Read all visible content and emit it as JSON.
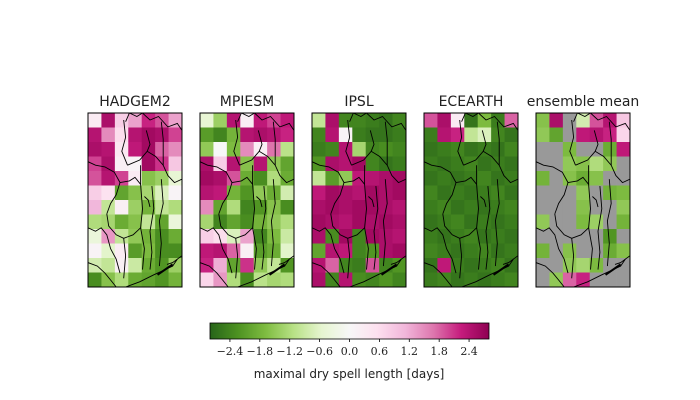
{
  "chart_data": {
    "type": "heatmap",
    "colormap": "PiYG_r",
    "vmin": -2.8,
    "vmax": 2.8,
    "missing_color": "#999999",
    "colorbar": {
      "label": "maximal dry spell length [days]",
      "ticks": [
        "−2.4",
        "−1.8",
        "−1.2",
        "−0.6",
        "0.0",
        "0.6",
        "1.2",
        "1.8",
        "2.4"
      ],
      "tick_values": [
        -2.4,
        -1.8,
        -1.2,
        -0.6,
        0.0,
        0.6,
        1.2,
        1.8,
        2.4
      ]
    },
    "grid_rows": 12,
    "grid_cols": 7,
    "panels": [
      {
        "title": "HADGEM2",
        "values": [
          [
            0.3,
            2.5,
            0.8,
            1.3,
            2.2,
            1.9,
            1.3
          ],
          [
            2.4,
            1.5,
            0.6,
            2.4,
            2.6,
            2.5,
            2.0
          ],
          [
            2.5,
            2.4,
            0.4,
            2.3,
            2.6,
            1.8,
            1.5
          ],
          [
            2.0,
            2.5,
            0.2,
            0.1,
            2.6,
            2.1,
            0.9
          ],
          [
            1.9,
            2.4,
            2.0,
            0.3,
            -1.6,
            -1.4,
            -0.5
          ],
          [
            0.8,
            0.5,
            -2.0,
            -1.6,
            -1.3,
            -0.7,
            0.1
          ],
          [
            1.1,
            -1.0,
            0.2,
            -1.4,
            -1.8,
            -1.0,
            -1.2
          ],
          [
            -1.2,
            -1.3,
            -1.9,
            -1.6,
            -1.0,
            -2.0,
            -0.4
          ],
          [
            -0.4,
            1.4,
            -1.0,
            -1.5,
            -1.8,
            -2.3,
            -1.9
          ],
          [
            0.1,
            -0.6,
            0.3,
            -2.1,
            -1.7,
            -2.3,
            -2.3
          ],
          [
            -0.8,
            -1.0,
            0.2,
            -0.9,
            -1.9,
            -2.2,
            -1.4
          ],
          [
            -2.3,
            -1.6,
            -1.2,
            -1.9,
            -2.0,
            -2.2,
            -1.8
          ]
        ]
      },
      {
        "title": "MPIESM",
        "values": [
          [
            -0.5,
            -1.4,
            2.4,
            0.2,
            2.3,
            2.0,
            2.3
          ],
          [
            -2.1,
            -2.4,
            -1.8,
            2.4,
            2.5,
            2.4,
            2.2
          ],
          [
            -1.5,
            0.0,
            -1.7,
            1.5,
            0.2,
            1.7,
            -1.1
          ],
          [
            2.5,
            0.8,
            2.4,
            -1.6,
            2.4,
            -1.5,
            -2.0
          ],
          [
            2.6,
            2.5,
            1.9,
            -1.9,
            -2.3,
            -1.2,
            -1.9
          ],
          [
            2.4,
            2.3,
            -1.8,
            -2.2,
            -1.5,
            -1.9,
            -0.8
          ],
          [
            1.5,
            -2.0,
            -1.2,
            -2.4,
            -2.2,
            -1.6,
            -2.3
          ],
          [
            -1.3,
            -2.4,
            -2.0,
            -2.3,
            -1.8,
            -1.5,
            -1.2
          ],
          [
            0.8,
            0.6,
            -0.7,
            1.3,
            -2.4,
            -1.7,
            -0.9
          ],
          [
            2.3,
            2.4,
            1.8,
            0.2,
            -2.1,
            -1.9,
            -0.6
          ],
          [
            2.2,
            1.2,
            -2.0,
            2.1,
            -1.5,
            -1.0,
            -2.2
          ],
          [
            0.7,
            1.4,
            -1.2,
            -2.3,
            -1.1,
            -1.3,
            -1.2
          ]
        ]
      },
      {
        "title": "IPSL",
        "values": [
          [
            -1.0,
            2.5,
            -2.4,
            -2.4,
            -2.5,
            -2.6,
            -2.4
          ],
          [
            -2.4,
            2.4,
            0.1,
            -2.5,
            -2.6,
            -2.6,
            -2.5
          ],
          [
            -2.5,
            -2.4,
            2.4,
            -1.3,
            -2.4,
            -2.3,
            -2.4
          ],
          [
            -2.2,
            2.5,
            2.4,
            2.6,
            -2.4,
            -2.6,
            -2.5
          ],
          [
            -1.0,
            -2.1,
            -1.5,
            2.3,
            2.4,
            2.5,
            2.6
          ],
          [
            2.3,
            2.6,
            2.5,
            2.4,
            2.6,
            2.5,
            2.6
          ],
          [
            2.5,
            2.6,
            2.5,
            2.6,
            2.6,
            2.5,
            2.4
          ],
          [
            2.6,
            2.5,
            2.4,
            2.6,
            2.5,
            2.6,
            2.5
          ],
          [
            2.5,
            -2.3,
            2.6,
            -2.4,
            2.6,
            2.5,
            2.4
          ],
          [
            -2.0,
            2.4,
            2.3,
            -2.4,
            -2.2,
            2.5,
            2.6
          ],
          [
            2.4,
            1.8,
            -2.4,
            -2.5,
            1.9,
            -2.4,
            -2.2
          ],
          [
            2.5,
            -2.4,
            2.4,
            -2.3,
            -2.4,
            -2.2,
            -2.4
          ]
        ]
      },
      {
        "title": "ECEARTH",
        "values": [
          [
            1.9,
            2.5,
            0.3,
            -2.6,
            -1.7,
            -2.5,
            1.8
          ],
          [
            -2.5,
            2.4,
            2.2,
            -1.0,
            -0.7,
            -2.4,
            -2.6
          ],
          [
            -2.6,
            -2.5,
            -2.4,
            -2.6,
            -2.5,
            -2.6,
            -2.4
          ],
          [
            -2.5,
            -2.6,
            -2.5,
            -2.4,
            -2.6,
            -2.5,
            -2.6
          ],
          [
            -2.6,
            -2.5,
            -2.6,
            -2.5,
            -2.4,
            -2.6,
            -2.5
          ],
          [
            -2.4,
            -2.6,
            -2.5,
            -2.6,
            -2.5,
            -2.4,
            -2.6
          ],
          [
            -2.5,
            -2.4,
            -2.6,
            -2.5,
            -2.6,
            -2.5,
            -2.4
          ],
          [
            -2.6,
            -2.5,
            -2.4,
            -2.6,
            -2.5,
            -2.6,
            -2.5
          ],
          [
            -2.5,
            -2.6,
            -2.5,
            -2.4,
            -2.6,
            -2.5,
            -2.6
          ],
          [
            -2.4,
            -2.5,
            -2.6,
            -2.5,
            -2.4,
            -2.6,
            -2.5
          ],
          [
            -2.6,
            2.3,
            -2.5,
            -2.6,
            -2.5,
            -2.4,
            -2.6
          ],
          [
            -2.5,
            -2.4,
            -2.6,
            -2.5,
            -2.6,
            -2.5,
            -2.4
          ]
        ]
      },
      {
        "title": "ensemble mean",
        "values": [
          [
            -1.6,
            2.5,
            null,
            -0.8,
            1.9,
            2.4,
            0.9
          ],
          [
            -1.5,
            -2.0,
            null,
            2.3,
            2.4,
            2.2,
            0.7
          ],
          [
            null,
            null,
            -1.7,
            null,
            null,
            -1.9,
            2.3
          ],
          [
            null,
            null,
            -1.5,
            -1.6,
            -1.2,
            -1.5,
            null
          ],
          [
            -1.8,
            null,
            -1.6,
            -1.9,
            -1.6,
            null,
            null
          ],
          [
            null,
            null,
            null,
            -1.5,
            null,
            -1.8,
            -1.7
          ],
          [
            null,
            null,
            null,
            -1.6,
            null,
            null,
            -1.5
          ],
          [
            -1.5,
            null,
            null,
            -1.7,
            -1.4,
            null,
            -1.8
          ],
          [
            null,
            null,
            null,
            null,
            null,
            -2.2,
            null
          ],
          [
            -1.8,
            null,
            -1.6,
            null,
            null,
            -1.9,
            -1.6
          ],
          [
            null,
            null,
            -1.5,
            -1.3,
            -1.7,
            null,
            null
          ],
          [
            null,
            -1.5,
            1.8,
            2.2,
            null,
            null,
            null
          ]
        ]
      }
    ]
  }
}
